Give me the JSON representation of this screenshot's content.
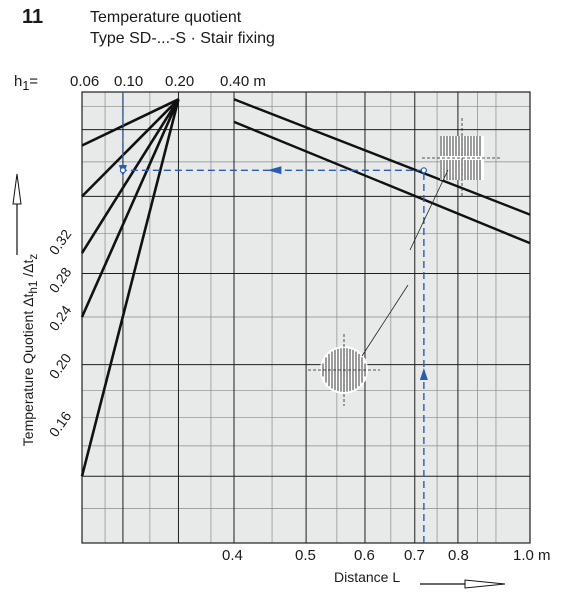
{
  "figure_number": "11",
  "title": "Temperature quotient",
  "subtitle": "Type SD-...-S · Stair fixing",
  "colors": {
    "plot_bg": "#e8e9e9",
    "grid_major": "#1f1f1f",
    "grid_minor": "#8a8a8a",
    "curve": "#111111",
    "example": "#2a5db0"
  },
  "chart_data": {
    "type": "line",
    "title": "Temperature quotient",
    "subtitle": "Type SD-...-S · Stair fixing",
    "xlabel": "Distance L",
    "ylabel": "Temperature Quotient Δt",
    "ylabel_sub": "h1",
    "ylabel_suffix": " /Δt",
    "ylabel_suffix_sub": "z",
    "x_scale": "log",
    "xlim": [
      0.4,
      1.0
    ],
    "x_ticks": [
      "0.4",
      "0.5",
      "0.6",
      "0.7",
      "0.8",
      "1.0 m"
    ],
    "x_tick_values": [
      0.4,
      0.5,
      0.6,
      0.7,
      0.8,
      1.0
    ],
    "y_ticks": [
      "0.16",
      "0.20",
      "0.24",
      "0.28",
      "0.32"
    ],
    "y_tick_values": [
      0.16,
      0.2,
      0.24,
      0.28,
      0.32
    ],
    "ylim": [
      0.14,
      0.345
    ],
    "top_axis_label": "h1=",
    "top_ticks": [
      "0.06",
      "0.10",
      "0.20",
      "0.40 m"
    ],
    "h1_series": [
      {
        "values": [
          [
            0.06,
            0.16
          ],
          [
            0.2,
            0.34
          ]
        ]
      },
      {
        "values": [
          [
            0.06,
            0.22
          ],
          [
            0.2,
            0.34
          ]
        ]
      },
      {
        "values": [
          [
            0.06,
            0.25
          ],
          [
            0.2,
            0.34
          ]
        ]
      },
      {
        "values": [
          [
            0.06,
            0.28
          ],
          [
            0.2,
            0.34
          ]
        ]
      },
      {
        "values": [
          [
            0.06,
            0.31
          ],
          [
            0.2,
            0.34
          ]
        ]
      }
    ],
    "distance_series": [
      {
        "values": [
          [
            0.4,
            0.34
          ],
          [
            1.0,
            0.27
          ]
        ]
      },
      {
        "values": [
          [
            0.4,
            0.325
          ],
          [
            1.0,
            0.255
          ]
        ]
      }
    ],
    "example": {
      "h1": 0.1,
      "L": 0.72,
      "quotient": 0.295
    }
  }
}
